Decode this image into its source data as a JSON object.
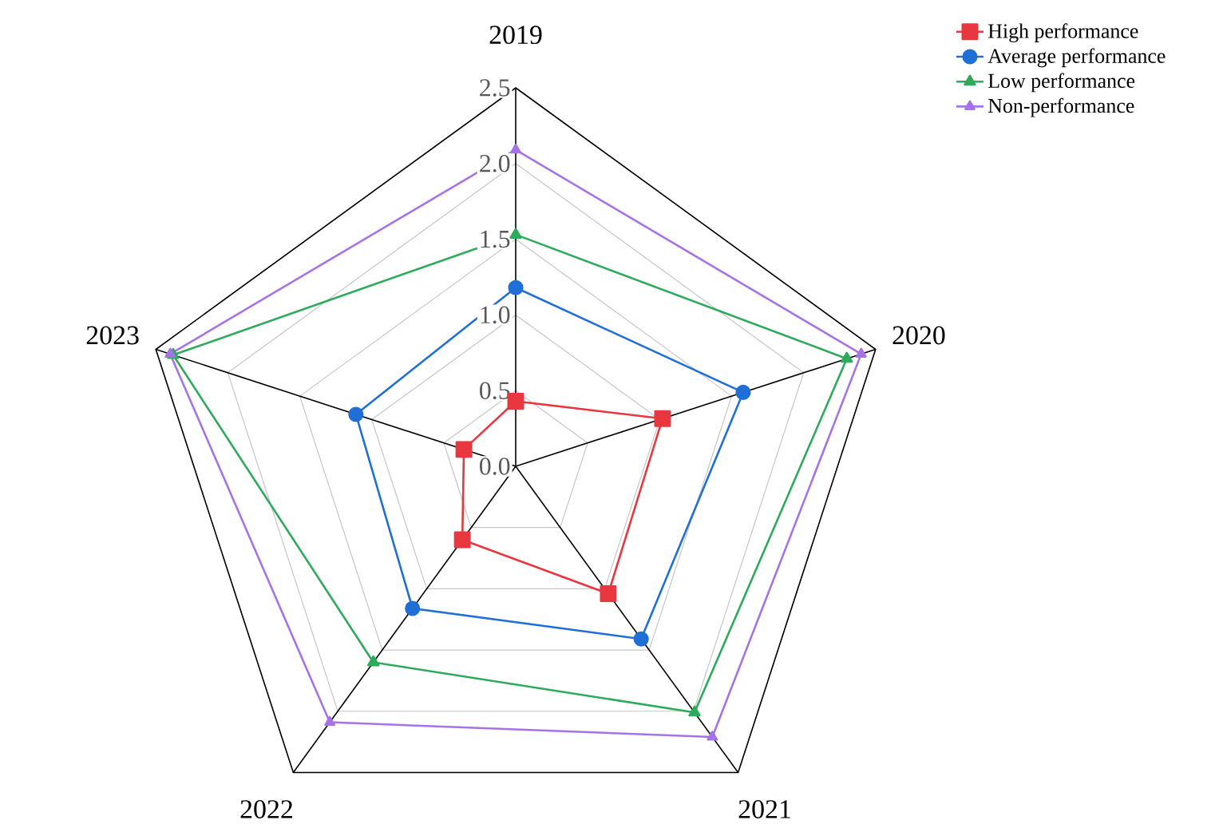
{
  "chart_data": {
    "type": "radar",
    "categories": [
      "2019",
      "2020",
      "2021",
      "2022",
      "2023"
    ],
    "series": [
      {
        "name": "High performance",
        "color": "#e8373f",
        "marker": "square",
        "values": [
          0.43,
          1.02,
          1.04,
          0.6,
          0.36
        ]
      },
      {
        "name": "Average performance",
        "color": "#1f6fd6",
        "marker": "circle",
        "values": [
          1.18,
          1.58,
          1.41,
          1.16,
          1.11
        ]
      },
      {
        "name": "Low performance",
        "color": "#2eaa5c",
        "marker": "triangle",
        "values": [
          1.53,
          2.3,
          2.01,
          1.6,
          2.38
        ]
      },
      {
        "name": "Non-performance",
        "color": "#a673e6",
        "marker": "triangle",
        "values": [
          2.09,
          2.4,
          2.21,
          2.09,
          2.4
        ]
      }
    ],
    "ylim": [
      0,
      2.5
    ],
    "yticks": [
      {
        "value": 0,
        "label": "0.0"
      },
      {
        "value": 0.5,
        "label": "0.5"
      },
      {
        "value": 1,
        "label": "1.0"
      },
      {
        "value": 1.5,
        "label": "1.5"
      },
      {
        "value": 2,
        "label": "2.0"
      },
      {
        "value": 2.5,
        "label": "2.5"
      }
    ],
    "grid": true,
    "legend": "top right"
  }
}
